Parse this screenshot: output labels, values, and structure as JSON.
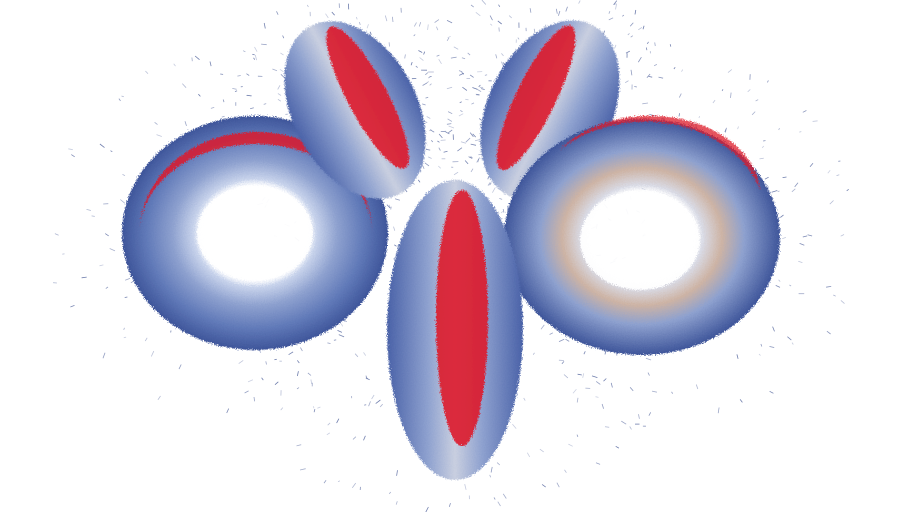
{
  "scene": {
    "background": "#ffffff",
    "colors": {
      "outer_shell": "#4a62a8",
      "mid_shell": "#7f96cc",
      "inner_highlight": "#c9d4ec",
      "warm_tint": "#e2b596",
      "core_red": "#dd1a2a",
      "speckle": "#3b4f8f"
    },
    "objects": [
      {
        "name": "left-torus-face-on",
        "orientation": "face-on"
      },
      {
        "name": "upper-left-torus-edge-on",
        "orientation": "edge-on"
      },
      {
        "name": "center-torus-edge-on",
        "orientation": "edge-on"
      },
      {
        "name": "upper-right-torus-edge-on",
        "orientation": "edge-on"
      },
      {
        "name": "right-torus-face-on",
        "orientation": "face-on"
      }
    ]
  }
}
